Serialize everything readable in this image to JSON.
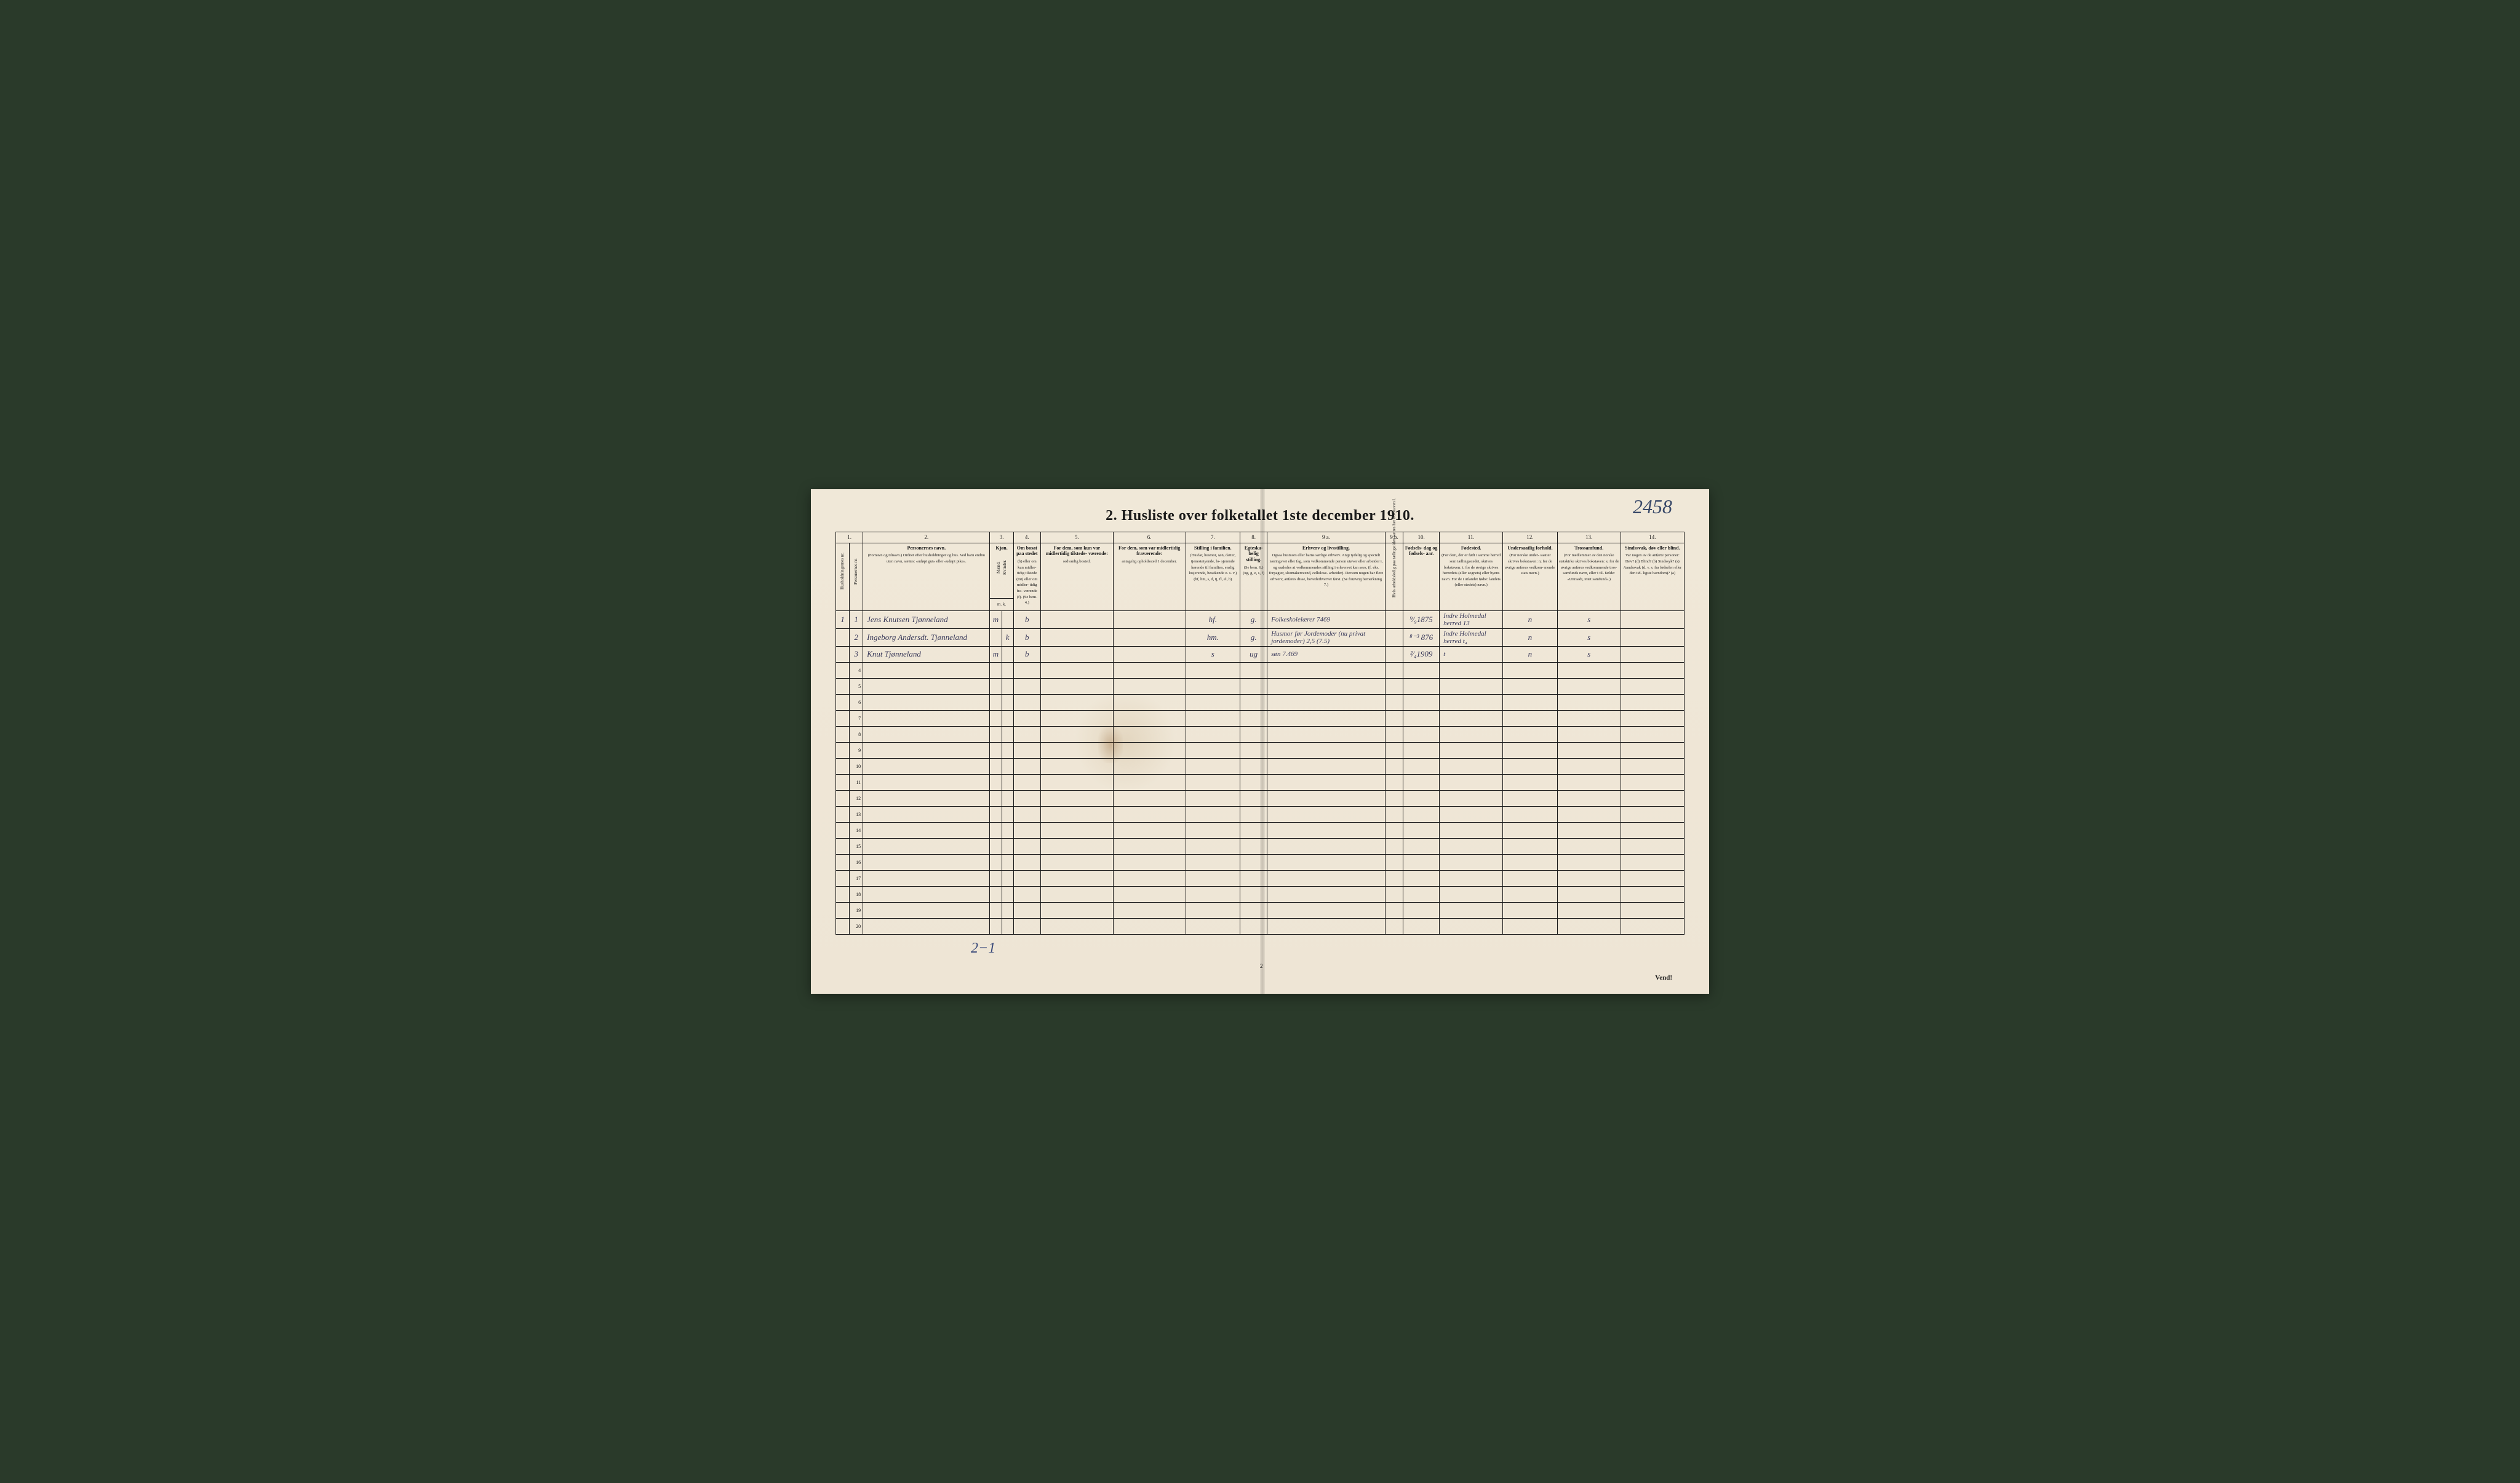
{
  "page_number_handwritten": "2458",
  "title": "2.  Husliste over folketallet 1ste december 1910.",
  "footer_note": "2−1",
  "page_footer": "Vend!",
  "page_bottom_num": "2",
  "column_numbers": [
    "1.",
    "2.",
    "3.",
    "4.",
    "5.",
    "6.",
    "7.",
    "8.",
    "9 a.",
    "9 b.",
    "10.",
    "11.",
    "12.",
    "13.",
    "14."
  ],
  "headers": {
    "col1a": "Husholdningernes nr.",
    "col1b": "Personernes nr.",
    "col2_title": "Personernes navn.",
    "col2_detail": "(Fornavn og tilnavn.)\nOrdnet efter husholdninger og hus.\nVed barn endnu uten navn, sættes: «udøpt gut»\neller «udøpt pike».",
    "col3_title": "Kjøn.",
    "col3a": "Mænd.",
    "col3b": "Kvinder.",
    "col3_sub": "m.  k.",
    "col4_title": "Om bosat\npaa stedet",
    "col4_detail": "(b) eller om\nkun midler-\ntidig tilstede\n(mt) eller\nom midler-\ntidig fra-\nværende (f).\n(Se bem. 4.)",
    "col5_title": "For dem, som kun var\nmidlertidig tilstede-\nværende:",
    "col5_detail": "sedvanlig bosted.",
    "col6_title": "For dem, som var\nmidlertidig\nfraværende:",
    "col6_detail": "antagelig opholdssted\n1 december.",
    "col7_title": "Stilling i familien.",
    "col7_detail": "(Husfar, husmor, søn,\ndatter, tjenestetyende, lo-\nsjerende hørende til familien,\nenslig losjerende, besøkende\no. s. v.)\n(hf, hm, s, d, tj, fl,\nel, b)",
    "col8_title": "Egteska-\nbelig\nstilling.",
    "col8_detail": "(Se bem. 6.)\n(ug, g,\ne, s, f)",
    "col9a_title": "Erhverv og livsstilling.",
    "col9a_detail": "Ogsaa husmors eller barns særlige erhverv.\nAngi tydelig og specielt næringsvei eller fag, som\nvedkommende person utøver eller arbeider i,\nog saaledes at vedkommendes stilling i erhvervet kan\nsees, (f. eks. forpagter, skomakersvend, cellulose-\narbeider). Dersom nogen har flere erhverv,\nanføres disse, hovederhvervet først.\n(Se forøvrig bemerkning 7.)",
    "col9b": "Hvis arbeidsledig\npaa tælingstiden sættes\nher bokstaven l.",
    "col10_title": "Fødsels-\ndag\nog\nfødsels-\naar.",
    "col11_title": "Fødested.",
    "col11_detail": "(For dem, der er født\ni samme herred som\ntællingsstedet,\nskrives bokstaven: t;\nfor de øvrige skrives\nherredets (eller sognets)\neller byens navn.\nFor de i utlandet fødte:\nlandets (eller stedets)\nnavn.)",
    "col12_title": "Undersaatlig\nforhold.",
    "col12_detail": "(For norske under-\nsaatter skrives\nbokstaven: n;\nfor de øvrige\nanføres vedkom-\nmende stats navn.)",
    "col13_title": "Trossamfund.",
    "col13_detail": "(For medlemmer av\nden norske statskirke\nskrives bokstaven: s;\nfor de øvrige anføres\nvedkommende tros-\nsamfunds navn, eller i til-\nfælde: «Uttraadt, intet\nsamfund».)",
    "col14_title": "Sindssvak, døv\neller blind.",
    "col14_detail": "Var nogen av de anførte\npersoner:\nDøv?        (d)\nBlind?      (b)\nSindssyk? (s)\nAandssvak (d. v. s. fra\nfødselen eller den tid-\nligste barndom)? (a)"
  },
  "data_rows": [
    {
      "hushold_nr": "1",
      "person_nr": "1",
      "name": "Jens Knutsen Tjønneland",
      "sex_m": "m",
      "sex_k": "",
      "bosat": "b",
      "col5": "",
      "col6": "",
      "stilling": "hf.",
      "egt": "g.",
      "erhverv": "Folkeskolelærer  7469",
      "col9b": "",
      "fodselsdato": "⁹⁄₉1875",
      "fodested": "Indre Holmedal herred  13",
      "undersaatlig": "n",
      "trossamfund": "s",
      "sindssvak": ""
    },
    {
      "hushold_nr": "",
      "person_nr": "2",
      "name": "Ingeborg Andersdt. Tjønneland",
      "sex_m": "",
      "sex_k": "k",
      "bosat": "b",
      "col5": "",
      "col6": "",
      "stilling": "hm.",
      "egt": "g.",
      "erhverv": "Husmor før Jordemoder (nu privat jordemoder) 2,5 (7.5)",
      "col9b": "",
      "fodselsdato": "⁸⁻³ 876",
      "fodested": "Indre Holmedal herred  t₄",
      "undersaatlig": "n",
      "trossamfund": "s",
      "sindssvak": ""
    },
    {
      "hushold_nr": "",
      "person_nr": "3",
      "name": "Knut Tjønneland",
      "sex_m": "m",
      "sex_k": "",
      "bosat": "b",
      "col5": "",
      "col6": "",
      "stilling": "s",
      "egt": "ug",
      "erhverv": "søn    7.469",
      "col9b": "",
      "fodselsdato": "²⁄₄1909",
      "fodested": "t",
      "undersaatlig": "n",
      "trossamfund": "s",
      "sindssvak": ""
    }
  ],
  "empty_row_numbers": [
    "4",
    "5",
    "6",
    "7",
    "8",
    "9",
    "10",
    "11",
    "12",
    "13",
    "14",
    "15",
    "16",
    "17",
    "18",
    "19",
    "20"
  ],
  "styling": {
    "page_bg": "#f0e8d8",
    "ink_color": "#1a1a1a",
    "handwriting_color": "#3a3a5a",
    "handwriting_blue": "#3a4a7a",
    "border_color": "#1a1a1a"
  }
}
